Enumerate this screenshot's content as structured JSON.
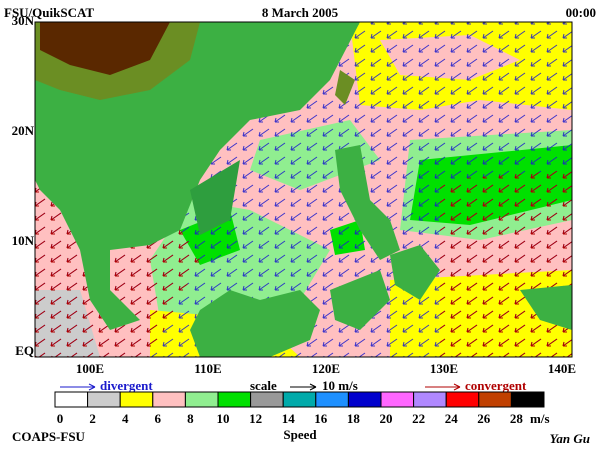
{
  "header": {
    "left": "FSU/QuikSCAT",
    "center": "8 March 2005",
    "right": "00:00"
  },
  "map": {
    "lat_labels": [
      "30N",
      "20N",
      "10N",
      "EQ"
    ],
    "lon_labels": [
      "100E",
      "110E",
      "120E",
      "130E",
      "140E"
    ]
  },
  "legend": {
    "divergent": "divergent",
    "scale": "scale",
    "scale_value": "10 m/s",
    "convergent": "convergent"
  },
  "colorbar": {
    "labels": [
      "0",
      "2",
      "4",
      "6",
      "8",
      "10",
      "12",
      "14",
      "16",
      "18",
      "20",
      "22",
      "24",
      "26",
      "28"
    ],
    "colors": [
      "#ffffff",
      "#cccccc",
      "#ffff00",
      "#ffc0c0",
      "#90ee90",
      "#00e000",
      "#999999",
      "#00aaaa",
      "#1e90ff",
      "#0000cc",
      "#ff66ff",
      "#b088ff",
      "#ff0000",
      "#c04000",
      "#000000"
    ],
    "unit": "m/s",
    "title": "Speed"
  },
  "footer": {
    "left": "COAPS-FSU",
    "right": "Yan Gu"
  }
}
